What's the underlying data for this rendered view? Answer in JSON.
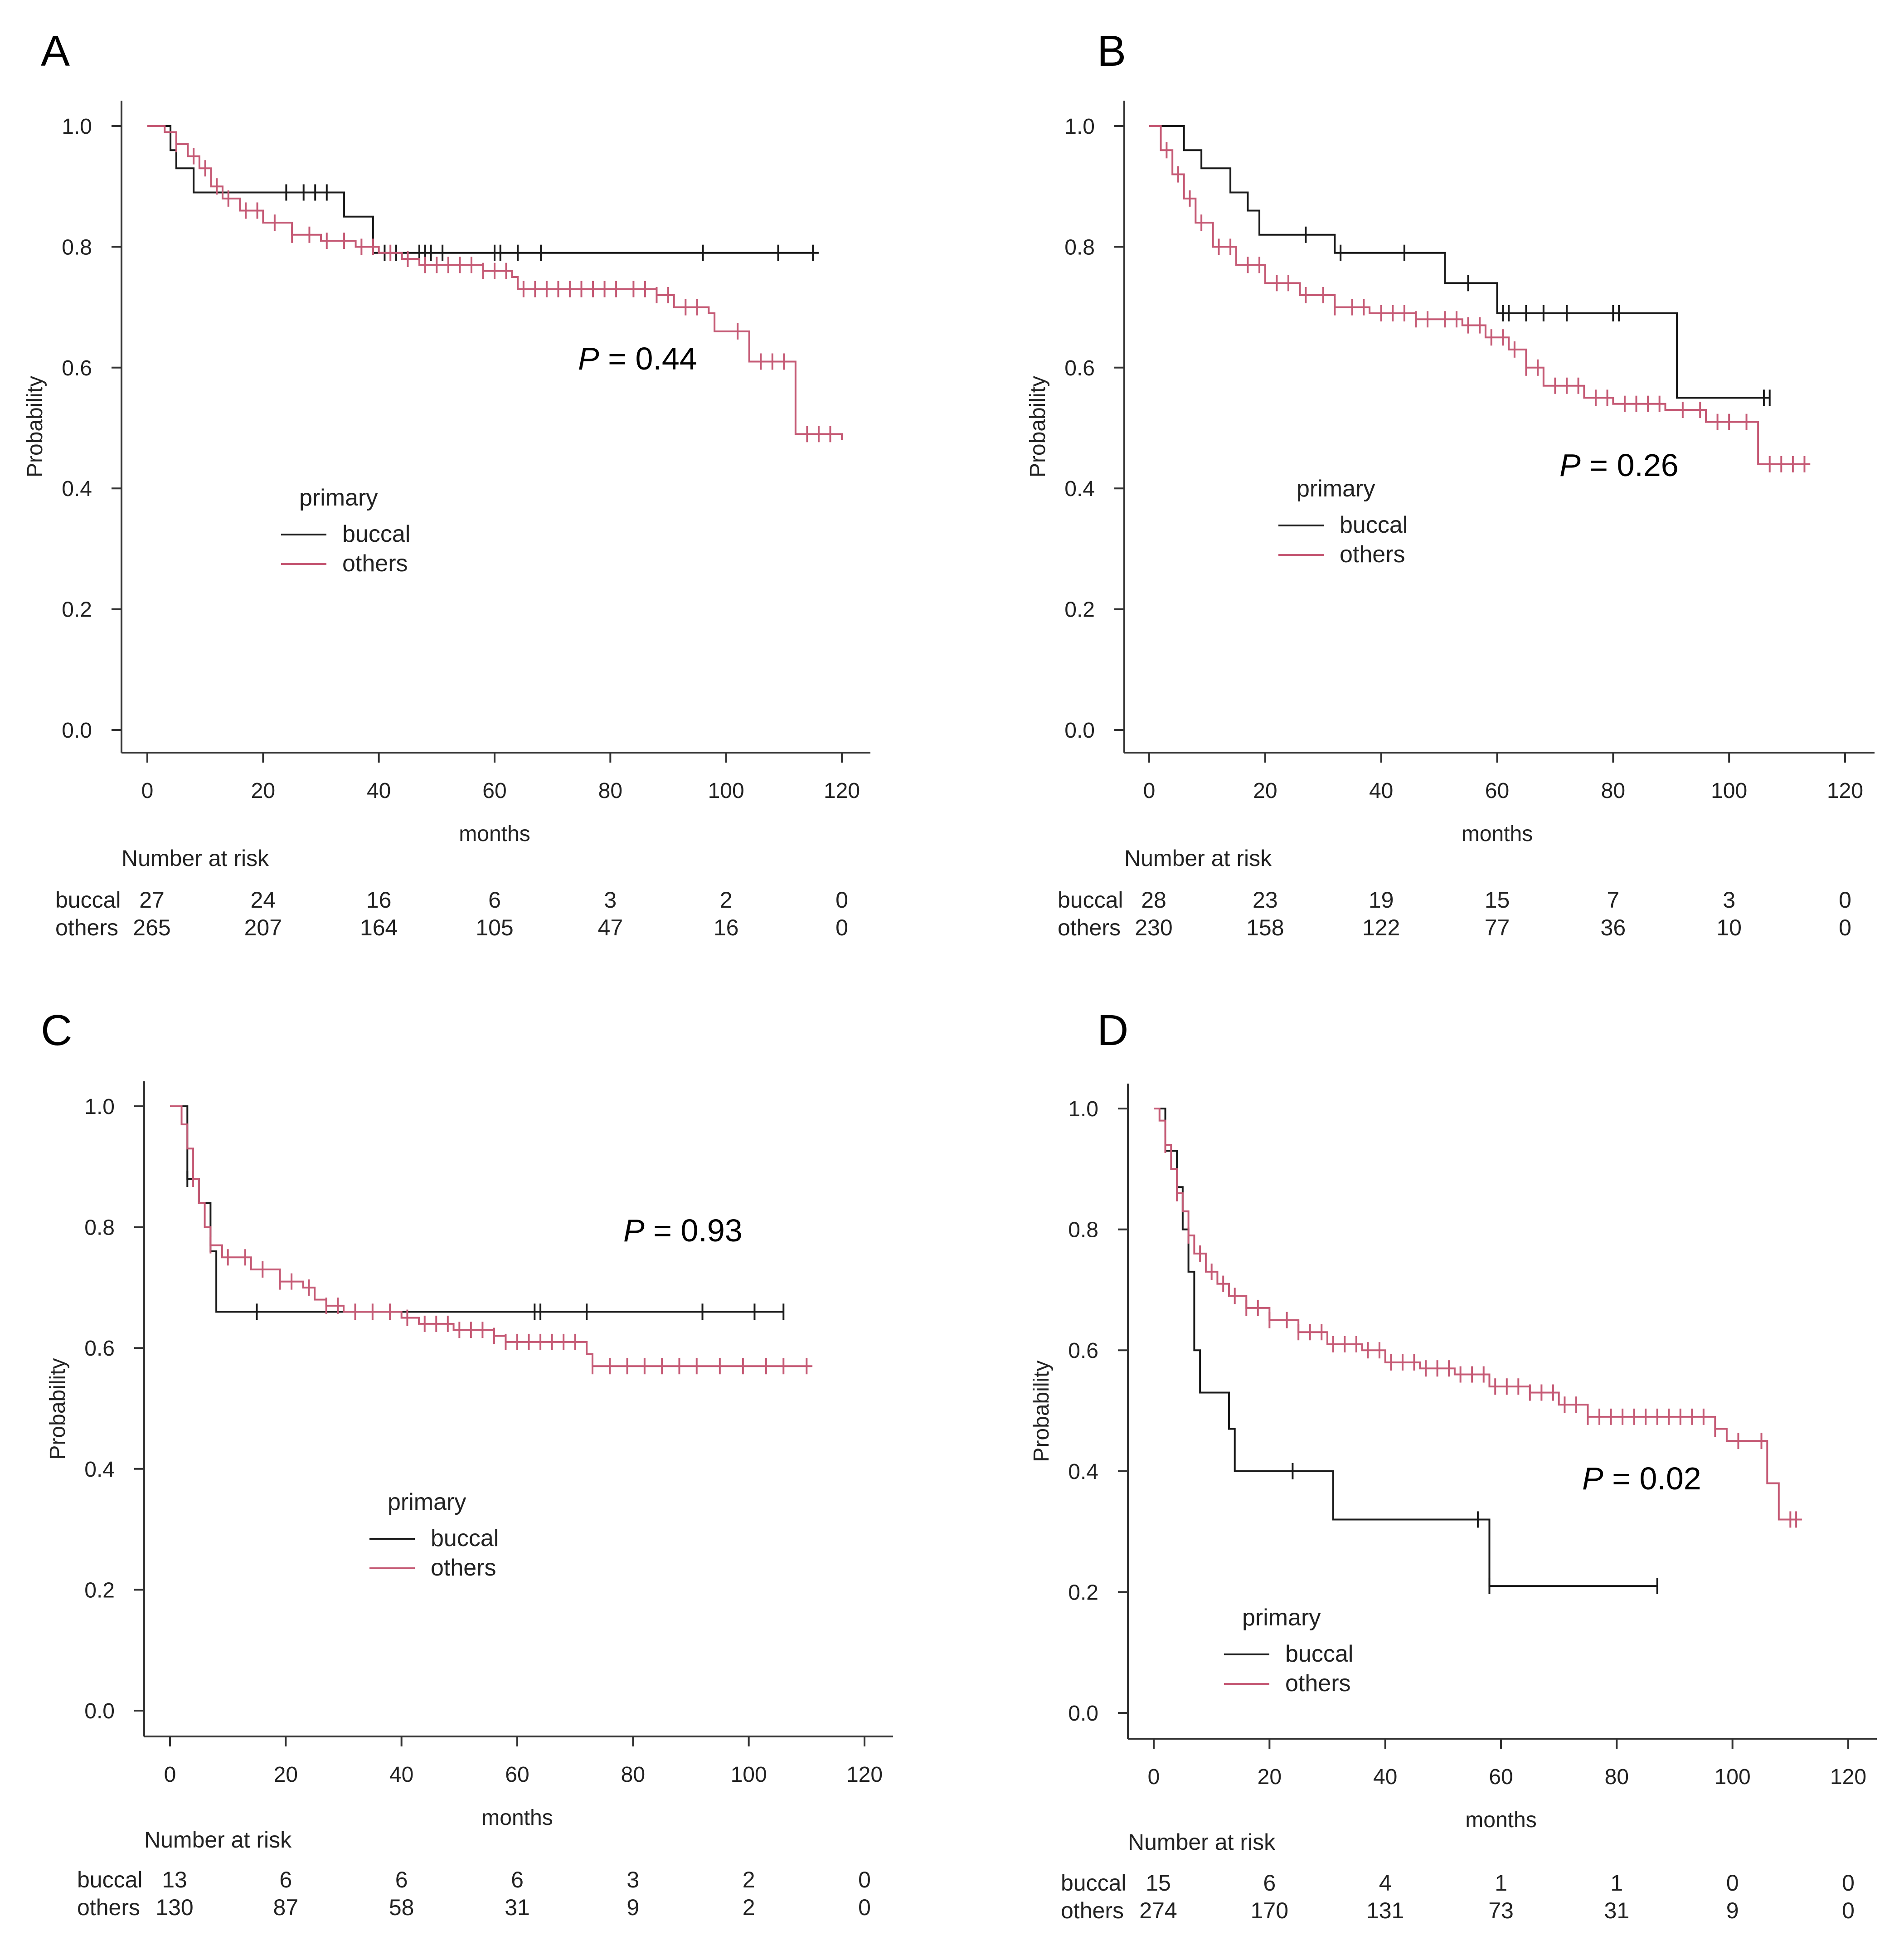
{
  "colors": {
    "buccal": "#1a1a1a",
    "others": "#c55a75",
    "axis": "#333333"
  },
  "chart_data": [
    {
      "type": "line",
      "panel": "A",
      "xlabel": "months",
      "ylabel": "Probability",
      "xlim": [
        0,
        120
      ],
      "ylim": [
        0,
        1
      ],
      "xticks": [
        "0",
        "20",
        "40",
        "60",
        "80",
        "100",
        "120"
      ],
      "yticks": [
        "0.0",
        "0.2",
        "0.4",
        "0.6",
        "0.8",
        "1.0"
      ],
      "legend_title": "primary",
      "p_label": "P",
      "p_value": "= 0.44",
      "risk_title": "Number at risk",
      "series": [
        {
          "name": "buccal",
          "steps": [
            [
              0,
              1.0
            ],
            [
              4,
              0.96
            ],
            [
              5,
              0.93
            ],
            [
              8,
              0.89
            ],
            [
              34,
              0.85
            ],
            [
              39,
              0.79
            ],
            [
              116,
              0.79
            ]
          ],
          "censors": [
            24,
            27,
            29,
            31,
            41,
            43,
            47,
            48,
            49,
            51,
            60,
            61,
            64,
            68,
            96,
            109,
            115
          ]
        },
        {
          "name": "others",
          "steps": [
            [
              0,
              1.0
            ],
            [
              3,
              0.99
            ],
            [
              5,
              0.97
            ],
            [
              7,
              0.95
            ],
            [
              9,
              0.93
            ],
            [
              11,
              0.9
            ],
            [
              13,
              0.88
            ],
            [
              16,
              0.86
            ],
            [
              20,
              0.84
            ],
            [
              25,
              0.82
            ],
            [
              30,
              0.81
            ],
            [
              36,
              0.8
            ],
            [
              40,
              0.79
            ],
            [
              44,
              0.78
            ],
            [
              47,
              0.77
            ],
            [
              58,
              0.76
            ],
            [
              63,
              0.75
            ],
            [
              64,
              0.73
            ],
            [
              88,
              0.72
            ],
            [
              91,
              0.7
            ],
            [
              97,
              0.69
            ],
            [
              98,
              0.66
            ],
            [
              104,
              0.61
            ],
            [
              112,
              0.49
            ],
            [
              120,
              0.48
            ]
          ],
          "censors": [
            5,
            8,
            10,
            12,
            14,
            17,
            19,
            22,
            25,
            28,
            31,
            34,
            37,
            39,
            42,
            45,
            48,
            50,
            52,
            54,
            56,
            58,
            60,
            62,
            65,
            67,
            69,
            71,
            73,
            75,
            77,
            79,
            81,
            84,
            86,
            88,
            90,
            93,
            95,
            102,
            106,
            108,
            110,
            114,
            116,
            118
          ]
        }
      ],
      "risk_table": {
        "times": [
          "0",
          "20",
          "40",
          "60",
          "80",
          "100",
          "120"
        ],
        "rows": [
          {
            "label": "buccal",
            "values": [
              "27",
              "24",
              "16",
              "6",
              "3",
              "2",
              "0"
            ]
          },
          {
            "label": "others",
            "values": [
              "265",
              "207",
              "164",
              "105",
              "47",
              "16",
              "0"
            ]
          }
        ]
      }
    },
    {
      "type": "line",
      "panel": "B",
      "xlabel": "months",
      "ylabel": "Probability",
      "xlim": [
        0,
        120
      ],
      "ylim": [
        0,
        1
      ],
      "xticks": [
        "0",
        "20",
        "40",
        "60",
        "80",
        "100",
        "120"
      ],
      "yticks": [
        "0.0",
        "0.2",
        "0.4",
        "0.6",
        "0.8",
        "1.0"
      ],
      "legend_title": "primary",
      "p_label": "P",
      "p_value": "= 0.26",
      "risk_title": "Number at risk",
      "series": [
        {
          "name": "buccal",
          "steps": [
            [
              0,
              1.0
            ],
            [
              6,
              0.96
            ],
            [
              9,
              0.93
            ],
            [
              14,
              0.89
            ],
            [
              17,
              0.86
            ],
            [
              19,
              0.82
            ],
            [
              28,
              0.82
            ],
            [
              32,
              0.79
            ],
            [
              34,
              0.79
            ],
            [
              51,
              0.74
            ],
            [
              60,
              0.69
            ],
            [
              91,
              0.55
            ],
            [
              107,
              0.55
            ]
          ],
          "censors": [
            27,
            33,
            44,
            55,
            61,
            62,
            65,
            68,
            72,
            80,
            81,
            106,
            107
          ]
        },
        {
          "name": "others",
          "steps": [
            [
              0,
              1.0
            ],
            [
              2,
              0.96
            ],
            [
              4,
              0.92
            ],
            [
              6,
              0.88
            ],
            [
              8,
              0.84
            ],
            [
              11,
              0.8
            ],
            [
              15,
              0.77
            ],
            [
              20,
              0.74
            ],
            [
              26,
              0.72
            ],
            [
              32,
              0.7
            ],
            [
              38,
              0.69
            ],
            [
              46,
              0.68
            ],
            [
              54,
              0.67
            ],
            [
              58,
              0.65
            ],
            [
              62,
              0.63
            ],
            [
              65,
              0.6
            ],
            [
              68,
              0.57
            ],
            [
              75,
              0.55
            ],
            [
              80,
              0.54
            ],
            [
              89,
              0.53
            ],
            [
              96,
              0.51
            ],
            [
              105,
              0.44
            ],
            [
              114,
              0.44
            ]
          ],
          "censors": [
            3,
            5,
            7,
            9,
            12,
            14,
            17,
            19,
            22,
            24,
            27,
            30,
            32,
            35,
            37,
            40,
            42,
            44,
            46,
            48,
            51,
            53,
            55,
            57,
            59,
            61,
            63,
            65,
            67,
            70,
            72,
            74,
            77,
            79,
            82,
            84,
            86,
            88,
            92,
            95,
            98,
            100,
            103,
            107,
            109,
            111,
            113
          ]
        }
      ],
      "risk_table": {
        "times": [
          "0",
          "20",
          "40",
          "60",
          "80",
          "100",
          "120"
        ],
        "rows": [
          {
            "label": "buccal",
            "values": [
              "28",
              "23",
              "19",
              "15",
              "7",
              "3",
              "0"
            ]
          },
          {
            "label": "others",
            "values": [
              "230",
              "158",
              "122",
              "77",
              "36",
              "10",
              "0"
            ]
          }
        ]
      }
    },
    {
      "type": "line",
      "panel": "C",
      "xlabel": "months",
      "ylabel": "Probability",
      "xlim": [
        0,
        120
      ],
      "ylim": [
        0,
        1
      ],
      "xticks": [
        "0",
        "20",
        "40",
        "60",
        "80",
        "100",
        "120"
      ],
      "yticks": [
        "0.0",
        "0.2",
        "0.4",
        "0.6",
        "0.8",
        "1.0"
      ],
      "legend_title": "primary",
      "p_label": "P",
      "p_value": "= 0.93",
      "risk_title": "Number at risk",
      "series": [
        {
          "name": "buccal",
          "steps": [
            [
              0,
              1.0
            ],
            [
              3,
              0.88
            ],
            [
              5,
              0.84
            ],
            [
              7,
              0.76
            ],
            [
              8,
              0.66
            ],
            [
              106,
              0.66
            ]
          ],
          "censors": [
            3,
            15,
            63,
            64,
            72,
            92,
            101,
            106
          ]
        },
        {
          "name": "others",
          "steps": [
            [
              0,
              1.0
            ],
            [
              2,
              0.97
            ],
            [
              3,
              0.93
            ],
            [
              4,
              0.88
            ],
            [
              5,
              0.84
            ],
            [
              6,
              0.8
            ],
            [
              7,
              0.77
            ],
            [
              9,
              0.75
            ],
            [
              14,
              0.73
            ],
            [
              19,
              0.71
            ],
            [
              23,
              0.7
            ],
            [
              25,
              0.68
            ],
            [
              27,
              0.67
            ],
            [
              30,
              0.66
            ],
            [
              40,
              0.65
            ],
            [
              43,
              0.64
            ],
            [
              49,
              0.63
            ],
            [
              56,
              0.62
            ],
            [
              58,
              0.61
            ],
            [
              72,
              0.59
            ],
            [
              73,
              0.57
            ],
            [
              111,
              0.57
            ]
          ],
          "censors": [
            4,
            7,
            10,
            13,
            16,
            19,
            21,
            24,
            27,
            29,
            32,
            35,
            38,
            41,
            44,
            46,
            48,
            50,
            52,
            54,
            56,
            58,
            60,
            62,
            64,
            66,
            68,
            70,
            73,
            76,
            79,
            82,
            85,
            88,
            91,
            95,
            99,
            103,
            106,
            110
          ]
        }
      ],
      "risk_table": {
        "times": [
          "0",
          "20",
          "40",
          "60",
          "80",
          "100",
          "120"
        ],
        "rows": [
          {
            "label": "buccal",
            "values": [
              "13",
              "6",
              "6",
              "6",
              "3",
              "2",
              "0"
            ]
          },
          {
            "label": "others",
            "values": [
              "130",
              "87",
              "58",
              "31",
              "9",
              "2",
              "0"
            ]
          }
        ]
      }
    },
    {
      "type": "line",
      "panel": "D",
      "xlabel": "months",
      "ylabel": "Probability",
      "xlim": [
        0,
        120
      ],
      "ylim": [
        0,
        1
      ],
      "xticks": [
        "0",
        "20",
        "40",
        "60",
        "80",
        "100",
        "120"
      ],
      "yticks": [
        "0.0",
        "0.2",
        "0.4",
        "0.6",
        "0.8",
        "1.0"
      ],
      "legend_title": "primary",
      "p_label": "P",
      "p_value": "= 0.02",
      "risk_title": "Number at risk",
      "series": [
        {
          "name": "buccal",
          "steps": [
            [
              0,
              1.0
            ],
            [
              2,
              0.93
            ],
            [
              4,
              0.87
            ],
            [
              5,
              0.8
            ],
            [
              6,
              0.73
            ],
            [
              7,
              0.6
            ],
            [
              8,
              0.53
            ],
            [
              13,
              0.47
            ],
            [
              14,
              0.4
            ],
            [
              31,
              0.32
            ],
            [
              58,
              0.21
            ],
            [
              87,
              0.21
            ]
          ],
          "censors": [
            24,
            56,
            58,
            87
          ]
        },
        {
          "name": "others",
          "steps": [
            [
              0,
              1.0
            ],
            [
              1,
              0.98
            ],
            [
              2,
              0.94
            ],
            [
              3,
              0.9
            ],
            [
              4,
              0.86
            ],
            [
              5,
              0.83
            ],
            [
              6,
              0.79
            ],
            [
              7,
              0.76
            ],
            [
              9,
              0.73
            ],
            [
              11,
              0.71
            ],
            [
              13,
              0.69
            ],
            [
              16,
              0.67
            ],
            [
              20,
              0.65
            ],
            [
              25,
              0.63
            ],
            [
              30,
              0.61
            ],
            [
              36,
              0.6
            ],
            [
              40,
              0.58
            ],
            [
              46,
              0.57
            ],
            [
              52,
              0.56
            ],
            [
              58,
              0.54
            ],
            [
              65,
              0.53
            ],
            [
              70,
              0.51
            ],
            [
              75,
              0.49
            ],
            [
              97,
              0.47
            ],
            [
              99,
              0.45
            ],
            [
              106,
              0.38
            ],
            [
              108,
              0.32
            ],
            [
              112,
              0.32
            ]
          ],
          "censors": [
            2,
            4,
            6,
            8,
            10,
            12,
            14,
            16,
            18,
            20,
            23,
            25,
            27,
            29,
            31,
            33,
            35,
            37,
            39,
            41,
            43,
            45,
            47,
            49,
            51,
            53,
            55,
            57,
            59,
            61,
            63,
            65,
            67,
            69,
            71,
            73,
            75,
            77,
            79,
            81,
            83,
            85,
            87,
            89,
            91,
            93,
            95,
            97,
            101,
            105,
            110,
            111
          ]
        }
      ],
      "risk_table": {
        "times": [
          "0",
          "20",
          "40",
          "60",
          "80",
          "100",
          "120"
        ],
        "rows": [
          {
            "label": "buccal",
            "values": [
              "15",
              "6",
              "4",
              "1",
              "1",
              "0",
              "0"
            ]
          },
          {
            "label": "others",
            "values": [
              "274",
              "170",
              "131",
              "73",
              "31",
              "9",
              "0"
            ]
          }
        ]
      }
    }
  ]
}
